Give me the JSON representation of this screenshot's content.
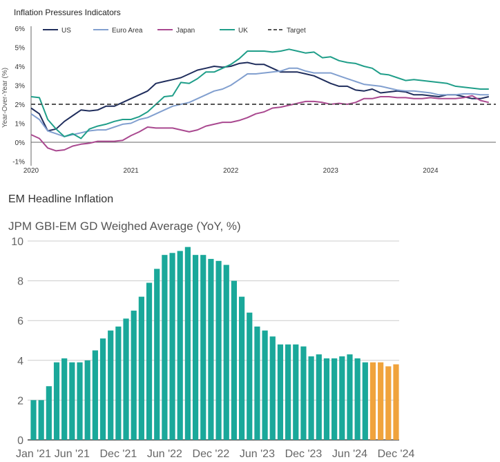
{
  "chart_data": [
    {
      "type": "line",
      "title": "Inflation Pressures Indicators",
      "ylabel": "Year-Over-Year (%)",
      "xlabel": "",
      "ylim": [
        -1,
        6
      ],
      "yticks": [
        "6%",
        "5%",
        "4%",
        "3%",
        "2%",
        "1%",
        "0%",
        "-1%"
      ],
      "xticks": [
        "2020",
        "2021",
        "2022",
        "2023",
        "2024"
      ],
      "x_start": "Jan 2020",
      "frequency": "monthly",
      "legend_position": "top",
      "grid": false,
      "series": [
        {
          "name": "US",
          "color": "#1f2d5c",
          "values": [
            1.8,
            1.5,
            0.6,
            0.7,
            1.1,
            1.4,
            1.7,
            1.65,
            1.7,
            1.9,
            1.9,
            2.1,
            2.3,
            2.5,
            2.7,
            3.1,
            3.2,
            3.3,
            3.4,
            3.6,
            3.8,
            3.9,
            4.0,
            3.95,
            4.0,
            4.15,
            4.2,
            4.1,
            4.1,
            3.9,
            3.7,
            3.7,
            3.7,
            3.6,
            3.5,
            3.3,
            3.1,
            2.95,
            2.95,
            2.75,
            2.7,
            2.8,
            2.6,
            2.65,
            2.7,
            2.65,
            2.5,
            2.5,
            2.45,
            2.4,
            2.5,
            2.5,
            2.4,
            2.3,
            2.3,
            2.4
          ]
        },
        {
          "name": "Euro Area",
          "color": "#819fcf",
          "values": [
            1.5,
            1.2,
            0.6,
            0.45,
            0.3,
            0.4,
            0.5,
            0.6,
            0.65,
            0.65,
            0.8,
            0.95,
            1.0,
            1.2,
            1.3,
            1.5,
            1.7,
            1.9,
            2.0,
            2.1,
            2.3,
            2.5,
            2.7,
            2.8,
            3.0,
            3.3,
            3.6,
            3.6,
            3.65,
            3.7,
            3.75,
            3.9,
            3.9,
            3.75,
            3.65,
            3.65,
            3.65,
            3.5,
            3.35,
            3.2,
            3.05,
            3.0,
            2.95,
            2.85,
            2.75,
            2.7,
            2.7,
            2.65,
            2.6,
            2.5,
            2.5,
            2.5,
            2.55,
            2.55,
            2.5,
            2.5
          ]
        },
        {
          "name": "Japan",
          "color": "#a9488f",
          "values": [
            0.4,
            0.2,
            -0.3,
            -0.45,
            -0.4,
            -0.2,
            -0.1,
            -0.05,
            0.05,
            0.05,
            0.05,
            0.1,
            0.35,
            0.55,
            0.8,
            0.75,
            0.75,
            0.75,
            0.65,
            0.55,
            0.65,
            0.85,
            0.95,
            1.05,
            1.05,
            1.15,
            1.3,
            1.5,
            1.6,
            1.8,
            1.85,
            1.95,
            2.05,
            2.15,
            2.15,
            2.1,
            2.0,
            2.05,
            2.0,
            2.1,
            2.3,
            2.3,
            2.4,
            2.4,
            2.35,
            2.35,
            2.3,
            2.3,
            2.35,
            2.3,
            2.3,
            2.3,
            2.35,
            2.45,
            2.2,
            2.1
          ]
        },
        {
          "name": "UK",
          "color": "#1f9e89",
          "values": [
            2.4,
            2.35,
            1.2,
            0.7,
            0.3,
            0.45,
            0.2,
            0.7,
            0.85,
            0.95,
            1.1,
            1.2,
            1.2,
            1.35,
            1.6,
            2.0,
            2.4,
            2.45,
            3.15,
            3.1,
            3.35,
            3.7,
            3.7,
            3.9,
            4.1,
            4.4,
            4.8,
            4.8,
            4.8,
            4.75,
            4.8,
            4.9,
            4.8,
            4.7,
            4.75,
            4.45,
            4.5,
            4.3,
            4.2,
            4.15,
            4.0,
            3.9,
            3.6,
            3.55,
            3.4,
            3.25,
            3.3,
            3.25,
            3.2,
            3.15,
            3.1,
            2.95,
            2.9,
            2.85,
            2.8,
            2.8
          ]
        },
        {
          "name": "Target",
          "color": "#555555",
          "dashed": true,
          "value": 2
        }
      ]
    },
    {
      "type": "bar",
      "title": "EM Headline Inflation",
      "subtitle": "JPM GBI-EM GD Weighed Average (YoY, %)",
      "ylim": [
        0,
        10
      ],
      "yticks": [
        "0",
        "2",
        "4",
        "6",
        "8",
        "10"
      ],
      "grid": true,
      "xticks": [
        "Jan '21",
        "Jun '21",
        "Dec '21",
        "Jun '22",
        "Dec '22",
        "Jun '23",
        "Dec '23",
        "Jun '24",
        "Dec '24"
      ],
      "xtick_index": [
        0,
        5,
        11,
        17,
        23,
        29,
        35,
        41,
        47
      ],
      "colors": {
        "actual": "#1aa89a",
        "forecast": "#f0a33c"
      },
      "values": [
        2.0,
        2.0,
        2.7,
        3.9,
        4.1,
        3.9,
        3.9,
        4.0,
        4.5,
        5.1,
        5.5,
        5.7,
        6.1,
        6.5,
        7.2,
        7.9,
        8.6,
        9.3,
        9.4,
        9.5,
        9.7,
        9.3,
        9.3,
        9.1,
        9.0,
        8.8,
        8.0,
        7.2,
        6.4,
        5.7,
        5.5,
        5.2,
        4.8,
        4.8,
        4.8,
        4.7,
        4.2,
        4.3,
        4.1,
        4.1,
        4.2,
        4.3,
        4.1,
        3.9,
        3.9,
        3.9,
        3.7,
        3.8
      ],
      "forecast_from_index": 44
    }
  ]
}
